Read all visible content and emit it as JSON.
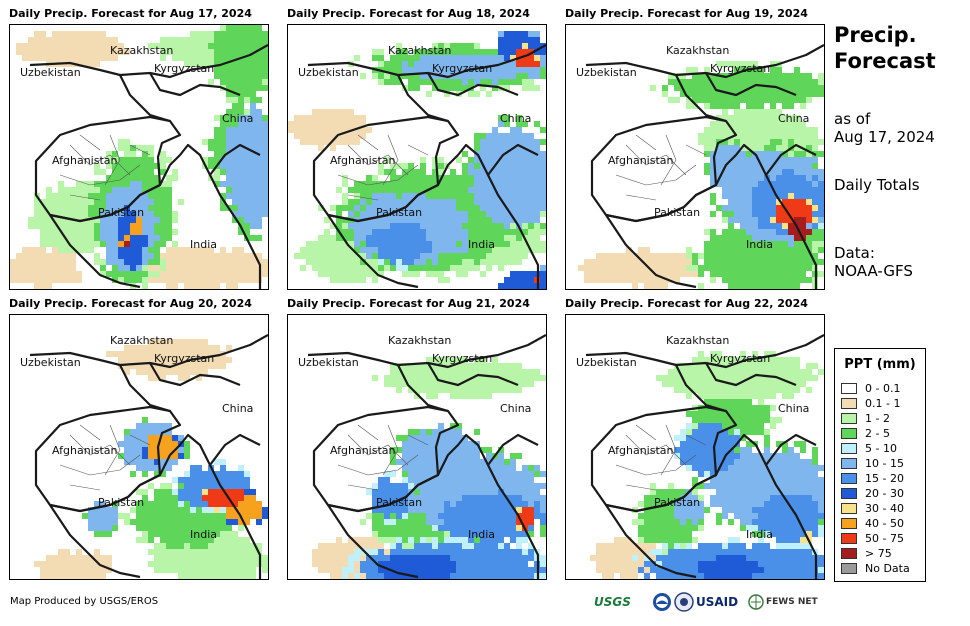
{
  "panels": [
    {
      "title": "Daily Precip. Forecast for Aug 17, 2024",
      "pattern": "south-pakistan"
    },
    {
      "title": "Daily Precip. Forecast for Aug 18, 2024",
      "pattern": "north-kyrgyz"
    },
    {
      "title": "Daily Precip. Forecast for Aug 19, 2024",
      "pattern": "east-india"
    },
    {
      "title": "Daily Precip. Forecast for Aug 20, 2024",
      "pattern": "kashmir-band"
    },
    {
      "title": "Daily Precip. Forecast for Aug 21, 2024",
      "pattern": "india-wide"
    },
    {
      "title": "Daily Precip. Forecast for Aug 22, 2024",
      "pattern": "india-south"
    }
  ],
  "places": {
    "kazakhstan": "Kazakhstan",
    "uzbekistan": "Uzbekistan",
    "kyrgyzstan": "Kyrgyzstan",
    "china": "China",
    "afghanistan": "Afghanistan",
    "pakistan": "Pakistan",
    "india": "India"
  },
  "side": {
    "title": "Precip. Forecast",
    "as_of": "as of",
    "date": "Aug 17, 2024",
    "daily_totals": "Daily Totals",
    "data_label": "Data:",
    "data_source": "NOAA-GFS"
  },
  "legend": {
    "title": "PPT (mm)",
    "items": [
      {
        "label": "0 - 0.1",
        "color": "#ffffff"
      },
      {
        "label": "0.1 - 1",
        "color": "#f3dcb4"
      },
      {
        "label": "1 - 2",
        "color": "#b8f5a8"
      },
      {
        "label": "2 - 5",
        "color": "#5fd65a"
      },
      {
        "label": "5 - 10",
        "color": "#bff0fb"
      },
      {
        "label": "10 - 15",
        "color": "#7fb6ee"
      },
      {
        "label": "15 - 20",
        "color": "#4a8fe8"
      },
      {
        "label": "20 - 30",
        "color": "#1f5bd6"
      },
      {
        "label": "30 - 40",
        "color": "#f8e38a"
      },
      {
        "label": "40 - 50",
        "color": "#f6a21f"
      },
      {
        "label": "50 - 75",
        "color": "#ee3a16"
      },
      {
        "label": "> 75",
        "color": "#a51d1d"
      },
      {
        "label": "No Data",
        "color": "#9a9a9a"
      }
    ]
  },
  "footer": {
    "credit": "Map Produced by USGS/EROS",
    "logo_usgs": "USGS",
    "logo_usaid": "USAID",
    "logo_fews": "FEWS NET"
  }
}
